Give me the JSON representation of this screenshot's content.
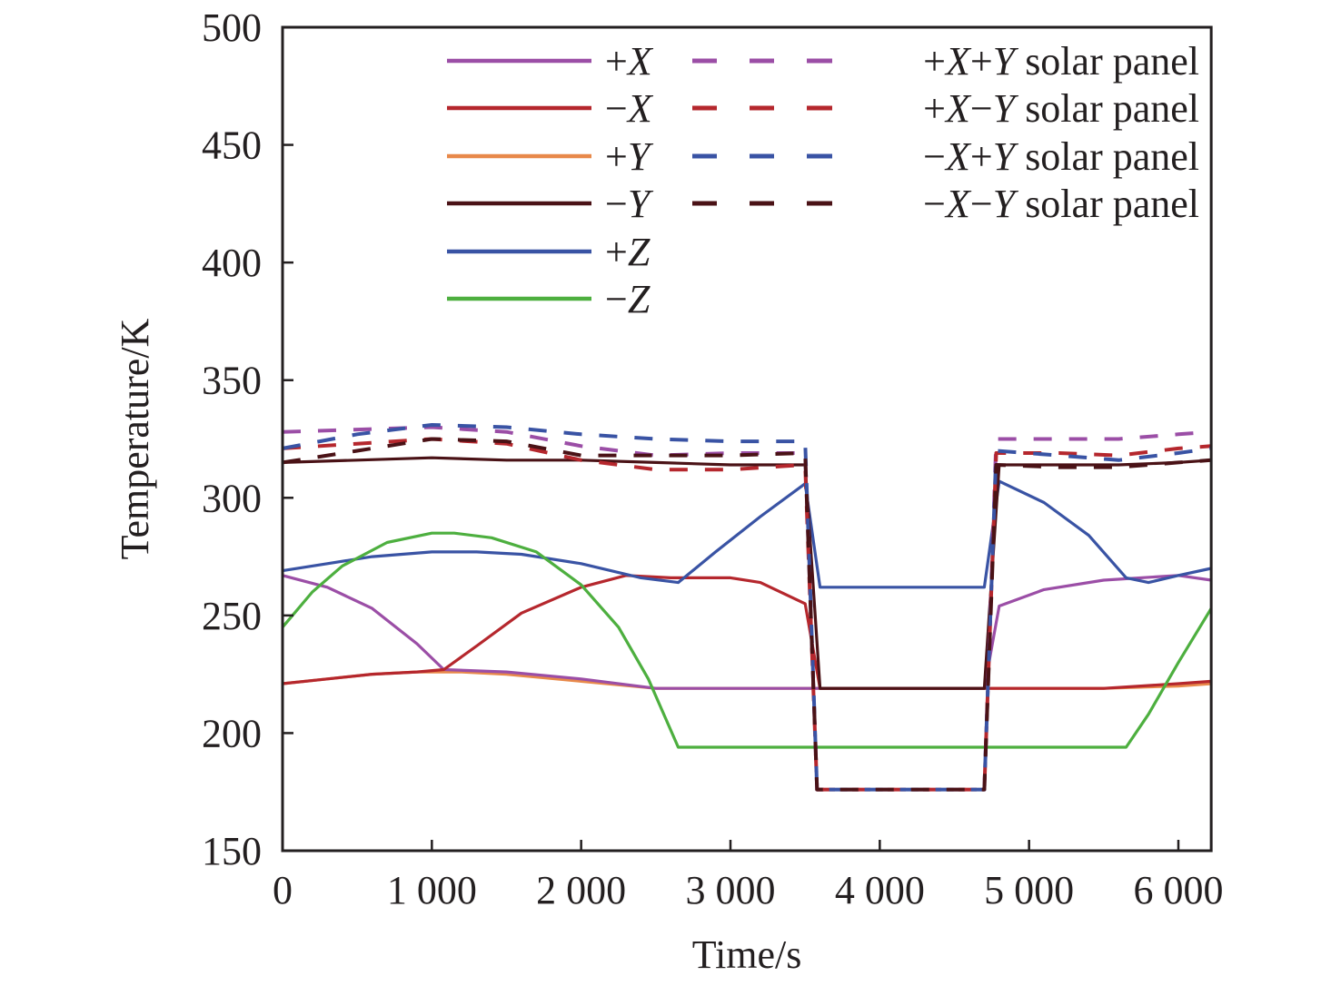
{
  "chart_data": {
    "type": "line",
    "title": "",
    "xlabel": "Time/s",
    "ylabel": "Temperature/K",
    "xlim": [
      0,
      6220
    ],
    "ylim": [
      150,
      500
    ],
    "grid": false,
    "legend_position": "top-right",
    "x_ticks": [
      {
        "value": 0,
        "label": "0"
      },
      {
        "value": 1000,
        "label": "1 000"
      },
      {
        "value": 2000,
        "label": "2 000"
      },
      {
        "value": 3000,
        "label": "3 000"
      },
      {
        "value": 4000,
        "label": "4 000"
      },
      {
        "value": 5000,
        "label": "5 000"
      },
      {
        "value": 6000,
        "label": "6 000"
      }
    ],
    "y_ticks": [
      {
        "value": 150,
        "label": "150"
      },
      {
        "value": 200,
        "label": "200"
      },
      {
        "value": 250,
        "label": "250"
      },
      {
        "value": 300,
        "label": "300"
      },
      {
        "value": 350,
        "label": "350"
      },
      {
        "value": 400,
        "label": "400"
      },
      {
        "value": 450,
        "label": "450"
      },
      {
        "value": 500,
        "label": "500"
      }
    ],
    "series": [
      {
        "name": "+X",
        "label_parts": [
          "+",
          "X"
        ],
        "color": "#9b4ea6",
        "dashed": false,
        "x": [
          0,
          300,
          600,
          900,
          1080,
          1500,
          2000,
          2500,
          3000,
          3500,
          3600,
          4700,
          4800,
          5100,
          5500,
          6000,
          6220
        ],
        "y": [
          267,
          262,
          253,
          238,
          227,
          226,
          223,
          219,
          219,
          219,
          219,
          219,
          254,
          261,
          265,
          267,
          265
        ]
      },
      {
        "name": "-X",
        "label_parts": [
          "−",
          "X"
        ],
        "color": "#b5272d",
        "dashed": false,
        "x": [
          0,
          300,
          600,
          900,
          1080,
          1300,
          1600,
          2000,
          2300,
          2600,
          3000,
          3200,
          3500,
          3600,
          4700,
          4800,
          5100,
          5500,
          6000,
          6220
        ],
        "y": [
          221,
          223,
          225,
          226,
          227,
          237,
          251,
          262,
          267,
          266,
          266,
          264,
          255,
          219,
          219,
          219,
          219,
          219,
          221,
          222
        ]
      },
      {
        "name": "+Y",
        "label_parts": [
          "+",
          "Y"
        ],
        "color": "#e8894a",
        "dashed": false,
        "x": [
          0,
          300,
          600,
          900,
          1200,
          1500,
          2000,
          2500,
          3000,
          3500,
          4000,
          4500,
          5000,
          5500,
          6000,
          6220
        ],
        "y": [
          221,
          223,
          225,
          226,
          226,
          225,
          222,
          219,
          219,
          219,
          219,
          219,
          219,
          219,
          220,
          221
        ]
      },
      {
        "name": "-Y",
        "label_parts": [
          "−",
          "Y"
        ],
        "color": "#4a1216",
        "dashed": false,
        "x": [
          0,
          500,
          1000,
          1500,
          2000,
          2500,
          3000,
          3500,
          3600,
          4700,
          4800,
          5200,
          5600,
          6000,
          6220
        ],
        "y": [
          315,
          316,
          317,
          316,
          316,
          315,
          314,
          314,
          219,
          219,
          314,
          314,
          314,
          315,
          316
        ]
      },
      {
        "name": "+Z",
        "label_parts": [
          "+",
          "Z"
        ],
        "color": "#3953a4",
        "dashed": false,
        "x": [
          0,
          300,
          600,
          1000,
          1300,
          1600,
          2000,
          2400,
          2650,
          2900,
          3200,
          3500,
          3600,
          4700,
          4800,
          5100,
          5400,
          5650,
          5800,
          6000,
          6220
        ],
        "y": [
          269,
          272,
          275,
          277,
          277,
          276,
          272,
          266,
          264,
          277,
          292,
          306,
          262,
          262,
          307,
          298,
          284,
          266,
          264,
          267,
          270
        ]
      },
      {
        "name": "-Z",
        "label_parts": [
          "−",
          "Z"
        ],
        "color": "#4daf3f",
        "dashed": false,
        "x": [
          0,
          200,
          400,
          700,
          1000,
          1150,
          1400,
          1700,
          2000,
          2250,
          2450,
          2650,
          3500,
          4500,
          5650,
          5800,
          6000,
          6220
        ],
        "y": [
          245,
          260,
          271,
          281,
          285,
          285,
          283,
          277,
          263,
          245,
          223,
          194,
          194,
          194,
          194,
          208,
          230,
          253
        ]
      },
      {
        "name": "+X+Y solar panel",
        "label_parts": [
          "+",
          "X",
          "+",
          "Y",
          " solar panel"
        ],
        "color": "#9b4ea6",
        "dashed": true,
        "x": [
          0,
          500,
          1000,
          1500,
          2000,
          2500,
          3000,
          3500,
          3580,
          4700,
          4780,
          5200,
          5600,
          6000,
          6220
        ],
        "y": [
          328,
          329,
          330,
          328,
          322,
          318,
          319,
          319,
          176,
          176,
          325,
          325,
          325,
          327,
          328
        ]
      },
      {
        "name": "+X-Y solar panel",
        "label_parts": [
          "+",
          "X",
          "−",
          "Y",
          " solar panel"
        ],
        "color": "#b5272d",
        "dashed": true,
        "x": [
          0,
          500,
          1000,
          1500,
          2000,
          2500,
          3000,
          3500,
          3580,
          4700,
          4780,
          5200,
          5600,
          6000,
          6220
        ],
        "y": [
          321,
          323,
          325,
          323,
          316,
          312,
          312,
          314,
          176,
          176,
          319,
          319,
          318,
          321,
          322
        ]
      },
      {
        "name": "-X+Y solar panel",
        "label_parts": [
          "−",
          "X",
          "+",
          "Y",
          " solar panel"
        ],
        "color": "#3953a4",
        "dashed": true,
        "x": [
          0,
          500,
          1000,
          1500,
          2000,
          2500,
          3000,
          3500,
          3580,
          4700,
          4780,
          5200,
          5600,
          6000,
          6220
        ],
        "y": [
          321,
          327,
          331,
          330,
          327,
          325,
          324,
          324,
          176,
          176,
          320,
          318,
          316,
          319,
          321
        ]
      },
      {
        "name": "-X-Y solar panel",
        "label_parts": [
          "−",
          "X",
          "−",
          "Y",
          " solar panel"
        ],
        "color": "#4a1216",
        "dashed": true,
        "x": [
          0,
          500,
          1000,
          1500,
          2000,
          2500,
          3000,
          3500,
          3580,
          4700,
          4780,
          5200,
          5600,
          6000,
          6220
        ],
        "y": [
          315,
          320,
          325,
          324,
          318,
          318,
          318,
          319,
          176,
          176,
          314,
          313,
          313,
          315,
          316
        ]
      }
    ]
  }
}
